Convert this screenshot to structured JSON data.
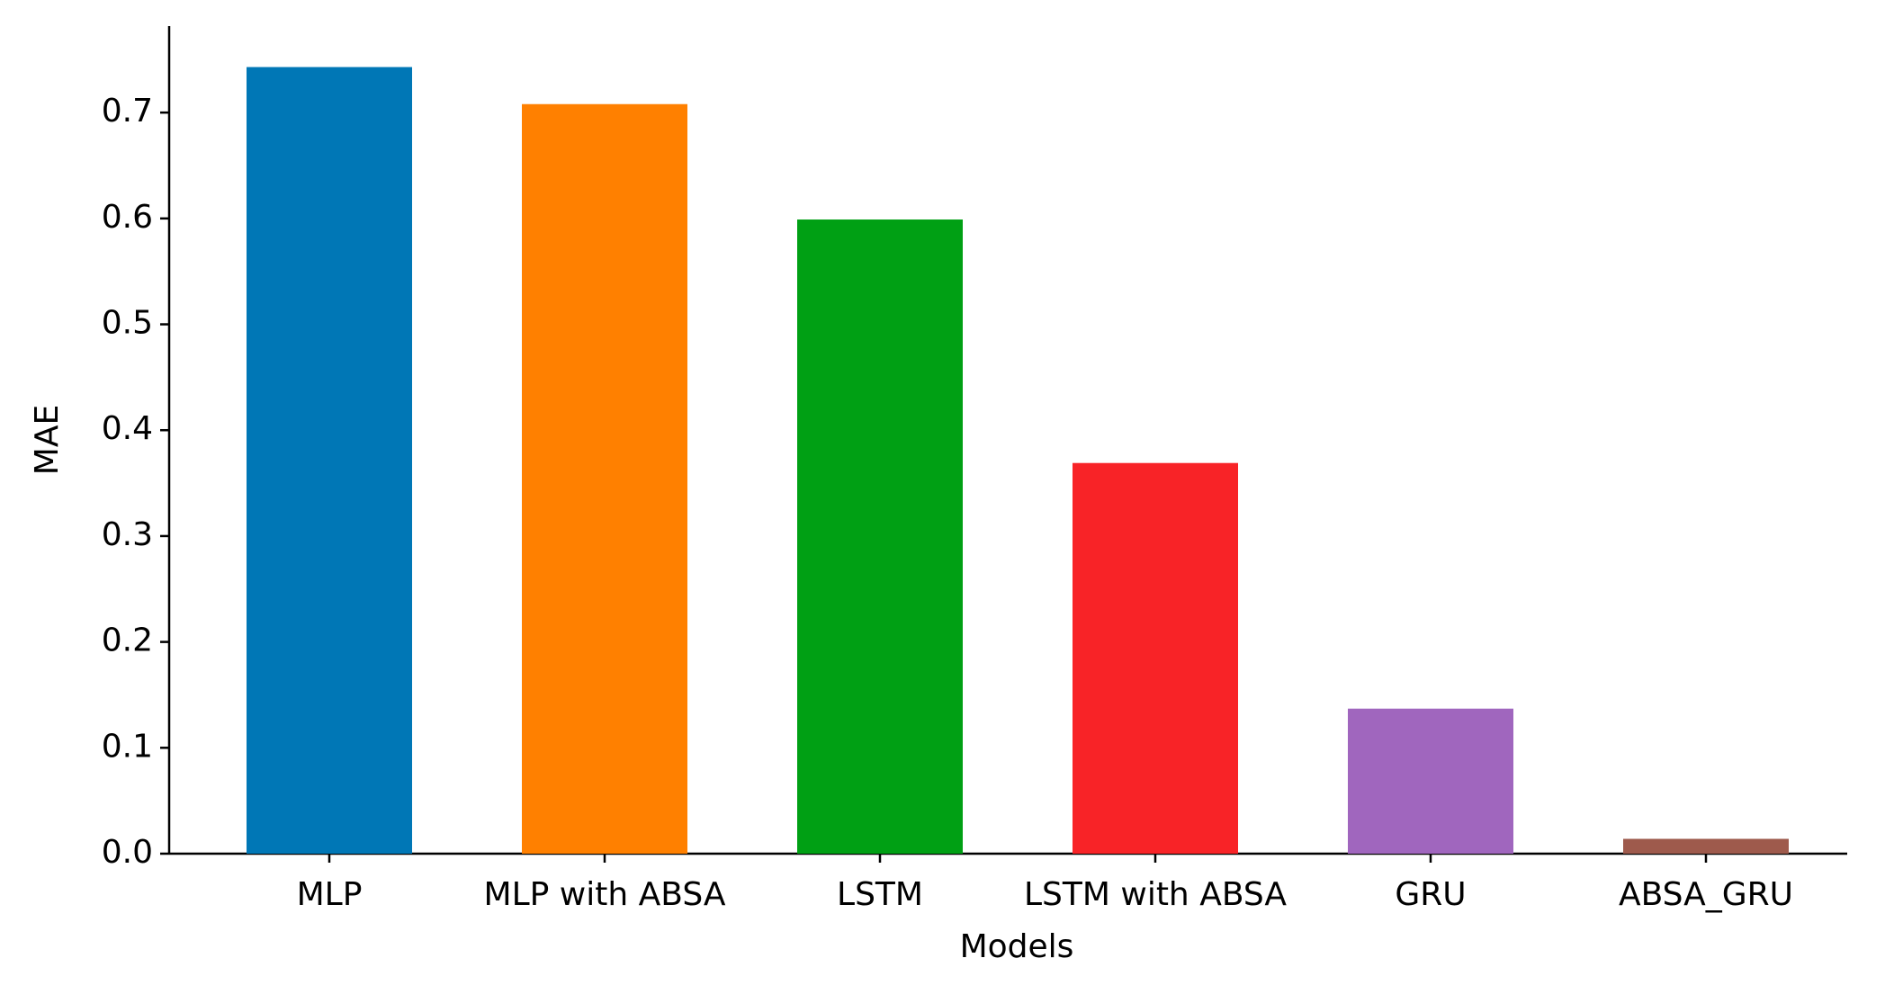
{
  "chart_data": {
    "type": "bar",
    "x_label": "Models",
    "y_label": "MAE",
    "categories": [
      "MLP",
      "MLP with ABSA",
      "LSTM",
      "LSTM with ABSA",
      "GRU",
      "ABSA_GRU"
    ],
    "values": [
      0.743,
      0.708,
      0.599,
      0.369,
      0.137,
      0.014
    ],
    "colors": [
      "#0077b6",
      "#ff8000",
      "#00a014",
      "#f82327",
      "#a066be",
      "#9e5a4c"
    ],
    "ylim": [
      0,
      0.78
    ],
    "yticks": [
      {
        "value": 0,
        "label": "0.0"
      },
      0.1,
      0.2,
      0.3,
      0.4,
      0.5,
      0.6,
      0.7
    ]
  }
}
